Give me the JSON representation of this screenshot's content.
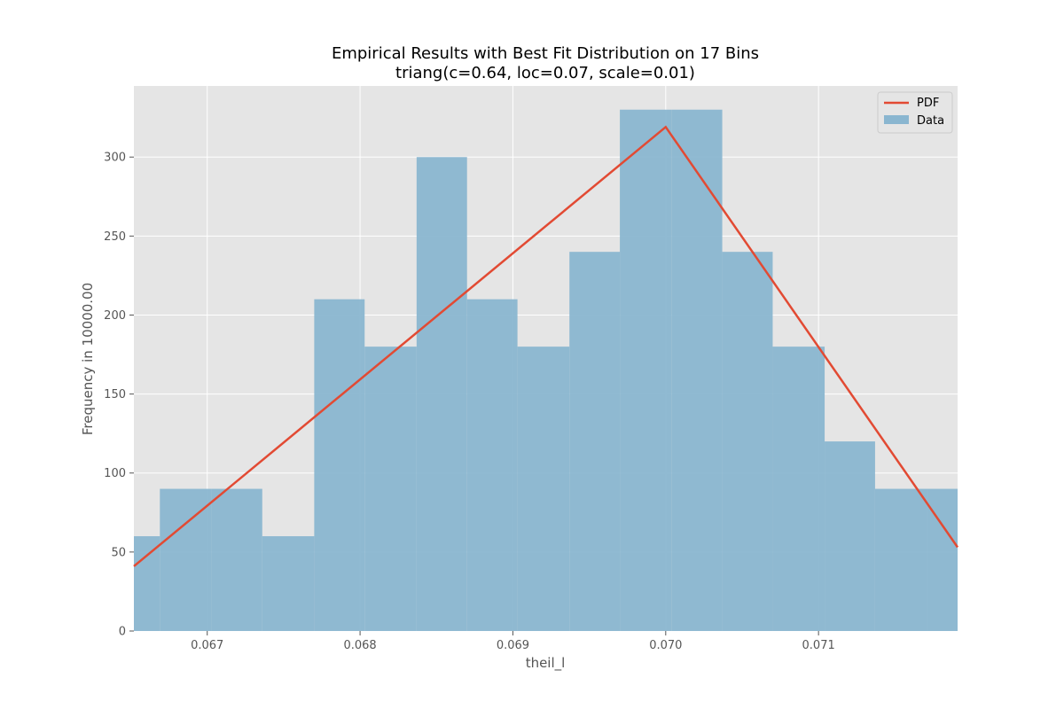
{
  "chart_data": {
    "type": "bar",
    "title": "Empirical Results with Best Fit Distribution on 17 Bins",
    "subtitle": "triang(c=0.64, loc=0.07, scale=0.01)",
    "xlabel": "theil_l",
    "ylabel": "Frequency in 10000.00",
    "xlim": [
      0.06652,
      0.07191
    ],
    "ylim": [
      0,
      345
    ],
    "xticks": [
      0.067,
      0.068,
      0.069,
      0.07,
      0.071
    ],
    "xtick_labels": [
      "0.067",
      "0.068",
      "0.069",
      "0.070",
      "0.071"
    ],
    "yticks": [
      0,
      50,
      100,
      150,
      200,
      250,
      300
    ],
    "ytick_labels": [
      "0",
      "50",
      "100",
      "150",
      "200",
      "250",
      "300"
    ],
    "grid": true,
    "legend_position": "top-right",
    "histogram": {
      "name": "Data",
      "color": "#8ab6d0",
      "bin_edges": [
        0.06636,
        0.06669,
        0.06703,
        0.06736,
        0.0677,
        0.06803,
        0.06837,
        0.0687,
        0.06903,
        0.06937,
        0.0697,
        0.07004,
        0.07037,
        0.0707,
        0.07104,
        0.07137,
        0.07171,
        0.07204
      ],
      "values": [
        60,
        90,
        90,
        60,
        210,
        180,
        300,
        210,
        180,
        240,
        330,
        330,
        240,
        180,
        120,
        90,
        90
      ]
    },
    "pdf": {
      "name": "PDF",
      "color": "#e24a33",
      "x": [
        0.06652,
        0.07,
        0.07191
      ],
      "y": [
        41,
        319,
        53
      ]
    }
  }
}
